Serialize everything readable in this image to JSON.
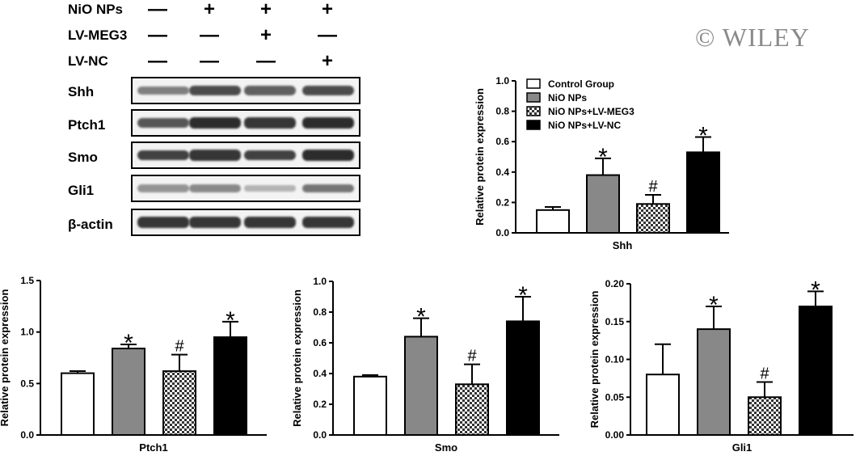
{
  "blot": {
    "conditions": [
      {
        "label": "NiO  NPs",
        "signs": [
          "—",
          "+",
          "+",
          "+"
        ]
      },
      {
        "label": "LV-MEG3",
        "signs": [
          "—",
          "—",
          "+",
          "—"
        ]
      },
      {
        "label": "LV-NC",
        "signs": [
          "—",
          "—",
          "—",
          "+"
        ]
      }
    ],
    "bands": [
      {
        "label": "Shh",
        "intensity": [
          0.55,
          0.8,
          0.7,
          0.8
        ]
      },
      {
        "label": "Ptch1",
        "intensity": [
          0.75,
          0.95,
          0.9,
          0.95
        ]
      },
      {
        "label": "Smo",
        "intensity": [
          0.85,
          0.9,
          0.85,
          0.95
        ]
      },
      {
        "label": "Gli1",
        "intensity": [
          0.45,
          0.5,
          0.3,
          0.6
        ]
      },
      {
        "label": "β-actin",
        "intensity": [
          0.9,
          0.9,
          0.9,
          0.9
        ]
      }
    ]
  },
  "watermark": "© WILEY",
  "legend": {
    "entries": [
      {
        "label": "Control Group",
        "fill": "white"
      },
      {
        "label": "NiO NPs",
        "fill": "gray"
      },
      {
        "label": "NiO NPs+LV-MEG3",
        "fill": "checker"
      },
      {
        "label": "NiO NPs+LV-NC",
        "fill": "black"
      }
    ]
  },
  "colors": {
    "white": "#ffffff",
    "gray": "#888888",
    "black": "#000000",
    "checker": "pattern"
  },
  "chart_data": [
    {
      "type": "bar",
      "xlabel": "Shh",
      "ylabel": "Relative protein expression",
      "ylim": [
        0,
        1.0
      ],
      "ticks": [
        "0.0",
        "0.2",
        "0.4",
        "0.6",
        "0.8",
        "1.0"
      ],
      "tickvals": [
        0,
        0.2,
        0.4,
        0.6,
        0.8,
        1.0
      ],
      "values": [
        0.15,
        0.38,
        0.19,
        0.53
      ],
      "errors": [
        0.02,
        0.11,
        0.06,
        0.1
      ],
      "annotations": [
        "",
        "*",
        "#",
        "*"
      ]
    },
    {
      "type": "bar",
      "xlabel": "Ptch1",
      "ylabel": "Relative protein expression",
      "ylim": [
        0,
        1.5
      ],
      "ticks": [
        "0.0",
        "0.5",
        "1.0",
        "1.5"
      ],
      "tickvals": [
        0,
        0.5,
        1.0,
        1.5
      ],
      "values": [
        0.6,
        0.84,
        0.62,
        0.95
      ],
      "errors": [
        0.02,
        0.04,
        0.16,
        0.15
      ],
      "annotations": [
        "",
        "*",
        "#",
        "*"
      ]
    },
    {
      "type": "bar",
      "xlabel": "Smo",
      "ylabel": "Relative protein expression",
      "ylim": [
        0,
        1.0
      ],
      "ticks": [
        "0.0",
        "0.2",
        "0.4",
        "0.6",
        "0.8",
        "1.0"
      ],
      "tickvals": [
        0,
        0.2,
        0.4,
        0.6,
        0.8,
        1.0
      ],
      "values": [
        0.38,
        0.64,
        0.33,
        0.74
      ],
      "errors": [
        0.01,
        0.12,
        0.13,
        0.16
      ],
      "annotations": [
        "",
        "*",
        "#",
        "*"
      ]
    },
    {
      "type": "bar",
      "xlabel": "Gli1",
      "ylabel": "Relative protein expression",
      "ylim": [
        0,
        0.2
      ],
      "ticks": [
        "0.00",
        "0.05",
        "0.10",
        "0.15",
        "0.20"
      ],
      "tickvals": [
        0,
        0.05,
        0.1,
        0.15,
        0.2
      ],
      "values": [
        0.08,
        0.14,
        0.05,
        0.17
      ],
      "errors": [
        0.04,
        0.03,
        0.02,
        0.02
      ],
      "annotations": [
        "",
        "*",
        "#",
        "*"
      ]
    }
  ]
}
